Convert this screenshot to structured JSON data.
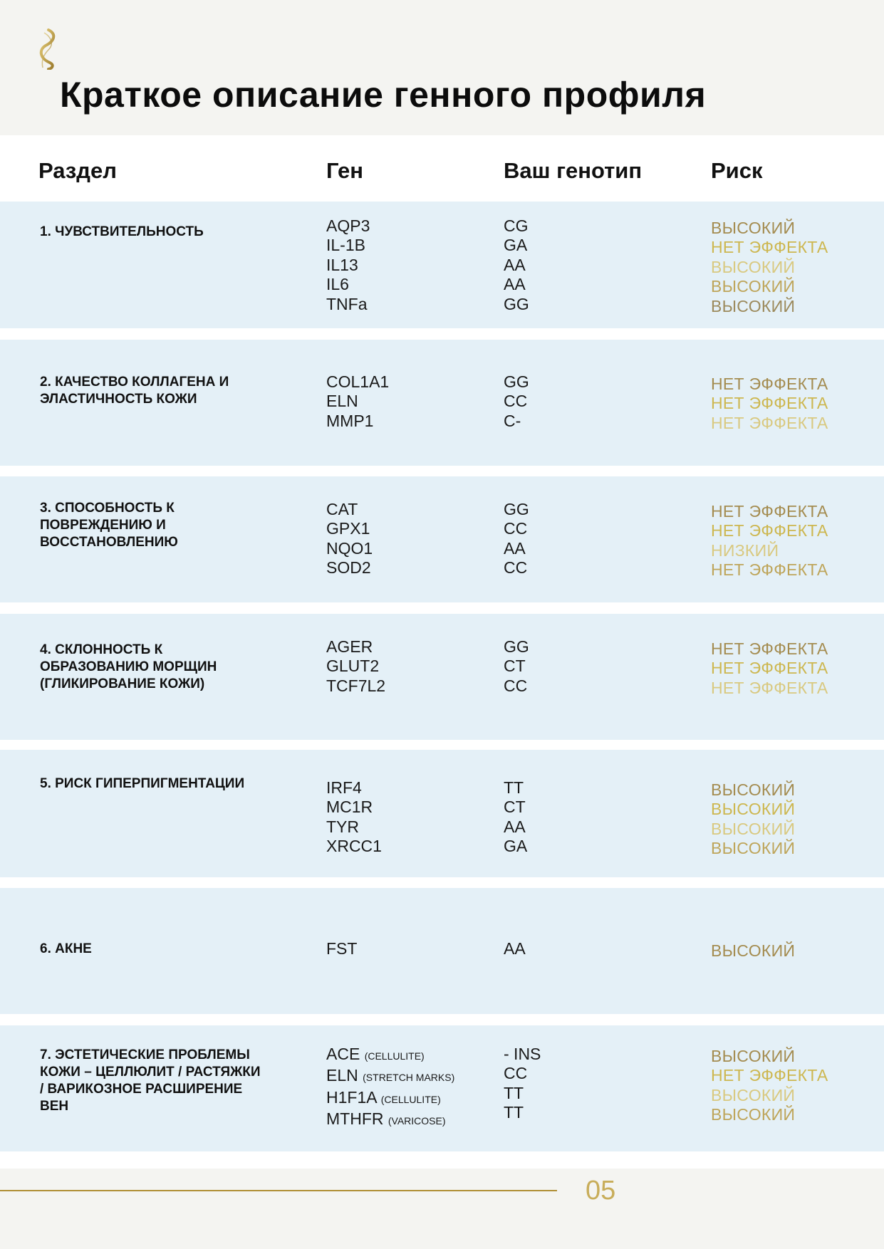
{
  "header": {
    "title": "Краткое описание генного профиля",
    "logo_icon": "dna-helix-logo"
  },
  "columns": {
    "section": "Раздел",
    "gene": "Ген",
    "genotype": "Ваш генотип",
    "risk": "Риск"
  },
  "colors": {
    "gold": "#b08f35",
    "row_bg": "#e4f0f7",
    "page_bg": "#f4f4f1"
  },
  "rows": [
    {
      "section": "1. ЧУВСТВИТЕЛЬНОСТЬ",
      "genes": [
        {
          "name": "AQP3"
        },
        {
          "name": "IL-1B"
        },
        {
          "name": "IL13"
        },
        {
          "name": "IL6"
        },
        {
          "name": "TNFa"
        }
      ],
      "genotypes": [
        "CG",
        "GA",
        "AA",
        "AA",
        "GG"
      ],
      "risks": [
        "ВЫСОКИЙ",
        "НЕТ ЭФФЕКТА",
        "ВЫСОКИЙ",
        "ВЫСОКИЙ",
        "ВЫСОКИЙ"
      ]
    },
    {
      "section": "2. КАЧЕСТВО КОЛЛАГЕНА И ЭЛАСТИЧНОСТЬ КОЖИ",
      "genes": [
        {
          "name": "COL1A1"
        },
        {
          "name": "ELN"
        },
        {
          "name": "MMP1"
        }
      ],
      "genotypes": [
        "GG",
        "CC",
        "C-"
      ],
      "risks": [
        "НЕТ ЭФФЕКТА",
        "НЕТ ЭФФЕКТА",
        "НЕТ ЭФФЕКТА"
      ]
    },
    {
      "section": "3. СПОСОБНОСТЬ К ПОВРЕЖДЕНИЮ И ВОССТАНОВЛЕНИЮ",
      "genes": [
        {
          "name": "CAT"
        },
        {
          "name": "GPX1"
        },
        {
          "name": "NQO1"
        },
        {
          "name": "SOD2"
        }
      ],
      "genotypes": [
        "GG",
        "CC",
        "AA",
        "CC"
      ],
      "risks": [
        "НЕТ ЭФФЕКТА",
        "НЕТ ЭФФЕКТА",
        "НИЗКИЙ",
        "НЕТ ЭФФЕКТА"
      ]
    },
    {
      "section": "4. СКЛОННОСТЬ К ОБРАЗОВАНИЮ МОРЩИН (ГЛИКИРОВАНИЕ КОЖИ)",
      "genes": [
        {
          "name": "AGER"
        },
        {
          "name": "GLUT2"
        },
        {
          "name": "TCF7L2"
        }
      ],
      "genotypes": [
        "GG",
        "CT",
        "CC"
      ],
      "risks": [
        "НЕТ ЭФФЕКТА",
        "НЕТ ЭФФЕКТА",
        "НЕТ ЭФФЕКТА"
      ]
    },
    {
      "section": "5. РИСК ГИПЕРПИГМЕНТАЦИИ",
      "genes": [
        {
          "name": "IRF4"
        },
        {
          "name": "MC1R"
        },
        {
          "name": "TYR"
        },
        {
          "name": "XRCC1"
        }
      ],
      "genotypes": [
        "TT",
        "CT",
        "AA",
        "GA"
      ],
      "risks": [
        "ВЫСОКИЙ",
        "ВЫСОКИЙ",
        "ВЫСОКИЙ",
        "ВЫСОКИЙ"
      ]
    },
    {
      "section": "6. АКНЕ",
      "genes": [
        {
          "name": "FST"
        }
      ],
      "genotypes": [
        "AA"
      ],
      "risks": [
        "ВЫСОКИЙ"
      ]
    },
    {
      "section": "7. ЭСТЕТИЧЕСКИЕ ПРОБЛЕМЫ КОЖИ – ЦЕЛЛЮЛИТ / РАСТЯЖКИ / ВАРИКОЗНОЕ РАСШИРЕНИЕ ВЕН",
      "genes": [
        {
          "name": "ACE",
          "note": "(CELLULITE)"
        },
        {
          "name": "ELN",
          "note": "(STRETCH MARKS)"
        },
        {
          "name": "H1F1A",
          "note": "(CELLULITE)"
        },
        {
          "name": "MTHFR",
          "note": "(VARICOSE)"
        }
      ],
      "genotypes": [
        "- INS",
        "CC",
        "TT",
        "TT"
      ],
      "risks": [
        "ВЫСОКИЙ",
        "НЕТ ЭФФЕКТА",
        "ВЫСОКИЙ",
        "ВЫСОКИЙ"
      ]
    }
  ],
  "footer": {
    "page_number": "05"
  }
}
